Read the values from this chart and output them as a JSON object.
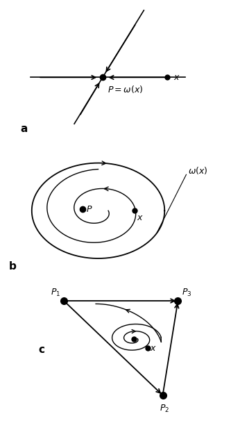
{
  "fig_width": 3.33,
  "fig_height": 6.19,
  "bg_color": "#ffffff",
  "line_color": "#000000",
  "label_a": "a",
  "label_b": "b",
  "label_c": "c"
}
